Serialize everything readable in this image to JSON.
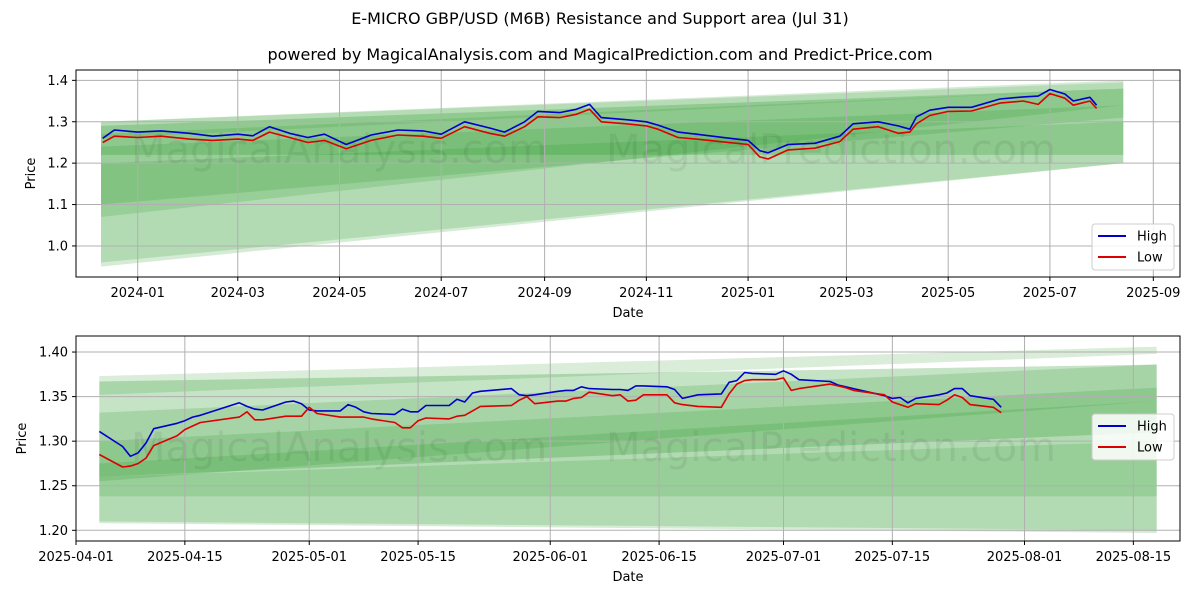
{
  "title": "E-MICRO GBP/USD (M6B) Resistance and Support area (Jul 31)",
  "subtitle": "powered by MagicalAnalysis.com and MagicalPrediction.com and Predict-Price.com",
  "watermarks": [
    "MagicalAnalysis.com",
    "MagicalPrediction.com"
  ],
  "colors": {
    "high": "#0000cc",
    "low": "#dd0000",
    "band": "#2e9a2e",
    "grid": "#b0b0b0"
  },
  "chart_data": [
    {
      "type": "line",
      "xlabel": "Date",
      "ylabel": "Price",
      "grid": true,
      "legend_position": "right",
      "xlim": [
        "2023-11-25",
        "2025-09-17"
      ],
      "ylim": [
        0.925,
        1.425
      ],
      "x_ticks": [
        "2024-01",
        "2024-03",
        "2024-05",
        "2024-07",
        "2024-09",
        "2024-11",
        "2025-01",
        "2025-03",
        "2025-05",
        "2025-07",
        "2025-09"
      ],
      "x_tick_dates": [
        "2024-01-01",
        "2024-03-01",
        "2024-05-01",
        "2024-07-01",
        "2024-09-01",
        "2024-11-01",
        "2025-01-01",
        "2025-03-01",
        "2025-05-01",
        "2025-07-01",
        "2025-09-01"
      ],
      "y_ticks": [
        "1.0",
        "1.1",
        "1.2",
        "1.3",
        "1.4"
      ],
      "y_tick_values": [
        1.0,
        1.1,
        1.2,
        1.3,
        1.4
      ],
      "bands": [
        {
          "x": [
            "2023-12-10",
            "2025-08-14"
          ],
          "upper": [
            1.3,
            1.395
          ],
          "lower": [
            1.26,
            1.38
          ]
        },
        {
          "x": [
            "2023-12-10",
            "2025-08-14"
          ],
          "upper": [
            1.29,
            1.38
          ],
          "lower": [
            1.22,
            1.22
          ]
        },
        {
          "x": [
            "2023-12-10",
            "2025-08-14"
          ],
          "upper": [
            1.27,
            1.38
          ],
          "lower": [
            1.1,
            1.31
          ]
        },
        {
          "x": [
            "2023-12-10",
            "2025-08-14"
          ],
          "upper": [
            1.24,
            1.34
          ],
          "lower": [
            1.07,
            1.34
          ]
        },
        {
          "x": [
            "2023-12-10",
            "2025-08-14"
          ],
          "upper": [
            1.2,
            1.3
          ],
          "lower": [
            0.96,
            1.2
          ]
        },
        {
          "x": [
            "2023-12-10",
            "2025-08-14"
          ],
          "upper": [
            1.3,
            1.4
          ],
          "lower": [
            0.95,
            1.2
          ]
        }
      ],
      "series": [
        {
          "name": "High",
          "x": [
            "2023-12-11",
            "2023-12-18",
            "2024-01-01",
            "2024-01-15",
            "2024-02-01",
            "2024-02-15",
            "2024-03-01",
            "2024-03-10",
            "2024-03-20",
            "2024-04-01",
            "2024-04-12",
            "2024-04-22",
            "2024-05-05",
            "2024-05-20",
            "2024-06-05",
            "2024-06-20",
            "2024-07-01",
            "2024-07-15",
            "2024-07-30",
            "2024-08-08",
            "2024-08-20",
            "2024-08-28",
            "2024-09-10",
            "2024-09-20",
            "2024-09-28",
            "2024-10-05",
            "2024-10-20",
            "2024-11-01",
            "2024-11-08",
            "2024-11-20",
            "2024-12-01",
            "2024-12-15",
            "2025-01-01",
            "2025-01-08",
            "2025-01-13",
            "2025-01-25",
            "2025-02-10",
            "2025-02-25",
            "2025-03-05",
            "2025-03-20",
            "2025-04-01",
            "2025-04-08",
            "2025-04-12",
            "2025-04-20",
            "2025-05-01",
            "2025-05-15",
            "2025-06-01",
            "2025-06-15",
            "2025-06-24",
            "2025-07-01",
            "2025-07-10",
            "2025-07-15",
            "2025-07-25",
            "2025-07-29"
          ],
          "values": [
            1.26,
            1.28,
            1.275,
            1.278,
            1.272,
            1.265,
            1.27,
            1.266,
            1.288,
            1.272,
            1.262,
            1.27,
            1.245,
            1.268,
            1.28,
            1.278,
            1.27,
            1.3,
            1.285,
            1.275,
            1.3,
            1.325,
            1.322,
            1.33,
            1.342,
            1.31,
            1.305,
            1.3,
            1.292,
            1.275,
            1.27,
            1.263,
            1.255,
            1.23,
            1.225,
            1.245,
            1.248,
            1.265,
            1.295,
            1.3,
            1.29,
            1.282,
            1.312,
            1.328,
            1.335,
            1.335,
            1.355,
            1.36,
            1.362,
            1.378,
            1.367,
            1.35,
            1.359,
            1.34
          ]
        },
        {
          "name": "Low",
          "x": [
            "2023-12-11",
            "2023-12-18",
            "2024-01-01",
            "2024-01-15",
            "2024-02-01",
            "2024-02-15",
            "2024-03-01",
            "2024-03-10",
            "2024-03-20",
            "2024-04-01",
            "2024-04-12",
            "2024-04-22",
            "2024-05-05",
            "2024-05-20",
            "2024-06-05",
            "2024-06-20",
            "2024-07-01",
            "2024-07-15",
            "2024-07-30",
            "2024-08-08",
            "2024-08-20",
            "2024-08-28",
            "2024-09-10",
            "2024-09-20",
            "2024-09-28",
            "2024-10-05",
            "2024-10-20",
            "2024-11-01",
            "2024-11-08",
            "2024-11-20",
            "2024-12-01",
            "2024-12-15",
            "2025-01-01",
            "2025-01-08",
            "2025-01-13",
            "2025-01-25",
            "2025-02-10",
            "2025-02-25",
            "2025-03-05",
            "2025-03-20",
            "2025-04-01",
            "2025-04-08",
            "2025-04-12",
            "2025-04-20",
            "2025-05-01",
            "2025-05-15",
            "2025-06-01",
            "2025-06-15",
            "2025-06-24",
            "2025-07-01",
            "2025-07-10",
            "2025-07-15",
            "2025-07-25",
            "2025-07-29"
          ],
          "values": [
            1.25,
            1.265,
            1.262,
            1.265,
            1.258,
            1.255,
            1.258,
            1.255,
            1.275,
            1.262,
            1.25,
            1.255,
            1.235,
            1.255,
            1.268,
            1.265,
            1.26,
            1.288,
            1.272,
            1.265,
            1.288,
            1.312,
            1.31,
            1.318,
            1.33,
            1.3,
            1.295,
            1.29,
            1.282,
            1.262,
            1.258,
            1.252,
            1.245,
            1.215,
            1.21,
            1.232,
            1.236,
            1.252,
            1.282,
            1.288,
            1.272,
            1.275,
            1.295,
            1.315,
            1.325,
            1.326,
            1.345,
            1.35,
            1.342,
            1.368,
            1.357,
            1.34,
            1.35,
            1.332
          ]
        }
      ]
    },
    {
      "type": "line",
      "xlabel": "Date",
      "ylabel": "Price",
      "grid": true,
      "legend_position": "right",
      "xlim": [
        "2025-04-01",
        "2025-08-21"
      ],
      "ylim": [
        1.188,
        1.418
      ],
      "x_ticks": [
        "2025-04-01",
        "2025-04-15",
        "2025-05-01",
        "2025-05-15",
        "2025-06-01",
        "2025-06-15",
        "2025-07-01",
        "2025-07-15",
        "2025-08-01",
        "2025-08-15"
      ],
      "x_tick_dates": [
        "2025-04-01",
        "2025-04-15",
        "2025-05-01",
        "2025-05-15",
        "2025-06-01",
        "2025-06-15",
        "2025-07-01",
        "2025-07-15",
        "2025-08-01",
        "2025-08-15"
      ],
      "y_ticks": [
        "1.20",
        "1.25",
        "1.30",
        "1.35",
        "1.40"
      ],
      "y_tick_values": [
        1.2,
        1.25,
        1.3,
        1.35,
        1.4
      ],
      "bands": [
        {
          "x": [
            "2025-04-04",
            "2025-08-18"
          ],
          "upper": [
            1.373,
            1.406
          ],
          "lower": [
            1.352,
            1.398
          ]
        },
        {
          "x": [
            "2025-04-04",
            "2025-08-18"
          ],
          "upper": [
            1.367,
            1.386
          ],
          "lower": [
            1.26,
            1.31
          ]
        },
        {
          "x": [
            "2025-04-04",
            "2025-08-18"
          ],
          "upper": [
            1.332,
            1.386
          ],
          "lower": [
            1.255,
            1.345
          ]
        },
        {
          "x": [
            "2025-04-04",
            "2025-08-18"
          ],
          "upper": [
            1.3,
            1.36
          ],
          "lower": [
            1.238,
            1.238
          ]
        },
        {
          "x": [
            "2025-04-04",
            "2025-08-18"
          ],
          "upper": [
            1.275,
            1.345
          ],
          "lower": [
            1.21,
            1.2
          ]
        },
        {
          "x": [
            "2025-04-04",
            "2025-08-18"
          ],
          "upper": [
            1.26,
            1.3
          ],
          "lower": [
            1.208,
            1.197
          ]
        }
      ],
      "series": [
        {
          "name": "High",
          "x": [
            "2025-04-04",
            "2025-04-07",
            "2025-04-08",
            "2025-04-09",
            "2025-04-10",
            "2025-04-11",
            "2025-04-14",
            "2025-04-15",
            "2025-04-16",
            "2025-04-17",
            "2025-04-22",
            "2025-04-23",
            "2025-04-24",
            "2025-04-25",
            "2025-04-28",
            "2025-04-29",
            "2025-04-30",
            "2025-05-01",
            "2025-05-02",
            "2025-05-05",
            "2025-05-06",
            "2025-05-07",
            "2025-05-08",
            "2025-05-09",
            "2025-05-12",
            "2025-05-13",
            "2025-05-14",
            "2025-05-15",
            "2025-05-16",
            "2025-05-19",
            "2025-05-20",
            "2025-05-21",
            "2025-05-22",
            "2025-05-23",
            "2025-05-27",
            "2025-05-28",
            "2025-05-29",
            "2025-05-30",
            "2025-06-02",
            "2025-06-03",
            "2025-06-04",
            "2025-06-05",
            "2025-06-06",
            "2025-06-09",
            "2025-06-10",
            "2025-06-11",
            "2025-06-12",
            "2025-06-13",
            "2025-06-16",
            "2025-06-17",
            "2025-06-18",
            "2025-06-20",
            "2025-06-23",
            "2025-06-24",
            "2025-06-25",
            "2025-06-26",
            "2025-06-27",
            "2025-06-30",
            "2025-07-01",
            "2025-07-02",
            "2025-07-03",
            "2025-07-07",
            "2025-07-08",
            "2025-07-09",
            "2025-07-10",
            "2025-07-14",
            "2025-07-15",
            "2025-07-16",
            "2025-07-17",
            "2025-07-18",
            "2025-07-21",
            "2025-07-22",
            "2025-07-23",
            "2025-07-24",
            "2025-07-25",
            "2025-07-28",
            "2025-07-29"
          ],
          "values": [
            1.311,
            1.294,
            1.283,
            1.287,
            1.298,
            1.314,
            1.32,
            1.323,
            1.327,
            1.329,
            1.343,
            1.339,
            1.336,
            1.335,
            1.344,
            1.345,
            1.342,
            1.335,
            1.334,
            1.334,
            1.341,
            1.338,
            1.333,
            1.331,
            1.33,
            1.336,
            1.333,
            1.333,
            1.34,
            1.34,
            1.347,
            1.344,
            1.354,
            1.356,
            1.359,
            1.352,
            1.351,
            1.352,
            1.356,
            1.357,
            1.357,
            1.361,
            1.359,
            1.358,
            1.358,
            1.357,
            1.362,
            1.362,
            1.361,
            1.358,
            1.348,
            1.352,
            1.353,
            1.366,
            1.368,
            1.377,
            1.376,
            1.375,
            1.379,
            1.375,
            1.369,
            1.367,
            1.363,
            1.361,
            1.359,
            1.351,
            1.348,
            1.349,
            1.343,
            1.348,
            1.352,
            1.354,
            1.359,
            1.359,
            1.351,
            1.347,
            1.338
          ]
        },
        {
          "name": "Low",
          "x": [
            "2025-04-04",
            "2025-04-07",
            "2025-04-08",
            "2025-04-09",
            "2025-04-10",
            "2025-04-11",
            "2025-04-14",
            "2025-04-15",
            "2025-04-16",
            "2025-04-17",
            "2025-04-22",
            "2025-04-23",
            "2025-04-24",
            "2025-04-25",
            "2025-04-28",
            "2025-04-29",
            "2025-04-30",
            "2025-05-01",
            "2025-05-02",
            "2025-05-05",
            "2025-05-06",
            "2025-05-07",
            "2025-05-08",
            "2025-05-09",
            "2025-05-12",
            "2025-05-13",
            "2025-05-14",
            "2025-05-15",
            "2025-05-16",
            "2025-05-19",
            "2025-05-20",
            "2025-05-21",
            "2025-05-22",
            "2025-05-23",
            "2025-05-27",
            "2025-05-28",
            "2025-05-29",
            "2025-05-30",
            "2025-06-02",
            "2025-06-03",
            "2025-06-04",
            "2025-06-05",
            "2025-06-06",
            "2025-06-09",
            "2025-06-10",
            "2025-06-11",
            "2025-06-12",
            "2025-06-13",
            "2025-06-16",
            "2025-06-17",
            "2025-06-18",
            "2025-06-20",
            "2025-06-23",
            "2025-06-24",
            "2025-06-25",
            "2025-06-26",
            "2025-06-27",
            "2025-06-30",
            "2025-07-01",
            "2025-07-02",
            "2025-07-03",
            "2025-07-07",
            "2025-07-08",
            "2025-07-09",
            "2025-07-10",
            "2025-07-14",
            "2025-07-15",
            "2025-07-16",
            "2025-07-17",
            "2025-07-18",
            "2025-07-21",
            "2025-07-22",
            "2025-07-23",
            "2025-07-24",
            "2025-07-25",
            "2025-07-28",
            "2025-07-29"
          ],
          "values": [
            1.285,
            1.271,
            1.272,
            1.275,
            1.281,
            1.295,
            1.306,
            1.313,
            1.317,
            1.321,
            1.327,
            1.333,
            1.324,
            1.324,
            1.328,
            1.328,
            1.328,
            1.338,
            1.331,
            1.327,
            1.327,
            1.327,
            1.327,
            1.325,
            1.321,
            1.315,
            1.315,
            1.323,
            1.326,
            1.325,
            1.328,
            1.329,
            1.334,
            1.339,
            1.34,
            1.346,
            1.35,
            1.342,
            1.345,
            1.345,
            1.348,
            1.349,
            1.355,
            1.351,
            1.352,
            1.345,
            1.346,
            1.352,
            1.352,
            1.343,
            1.341,
            1.339,
            1.338,
            1.353,
            1.364,
            1.368,
            1.369,
            1.369,
            1.371,
            1.357,
            1.359,
            1.364,
            1.362,
            1.36,
            1.357,
            1.352,
            1.344,
            1.341,
            1.338,
            1.342,
            1.341,
            1.346,
            1.352,
            1.349,
            1.341,
            1.338,
            1.332
          ]
        }
      ]
    }
  ]
}
